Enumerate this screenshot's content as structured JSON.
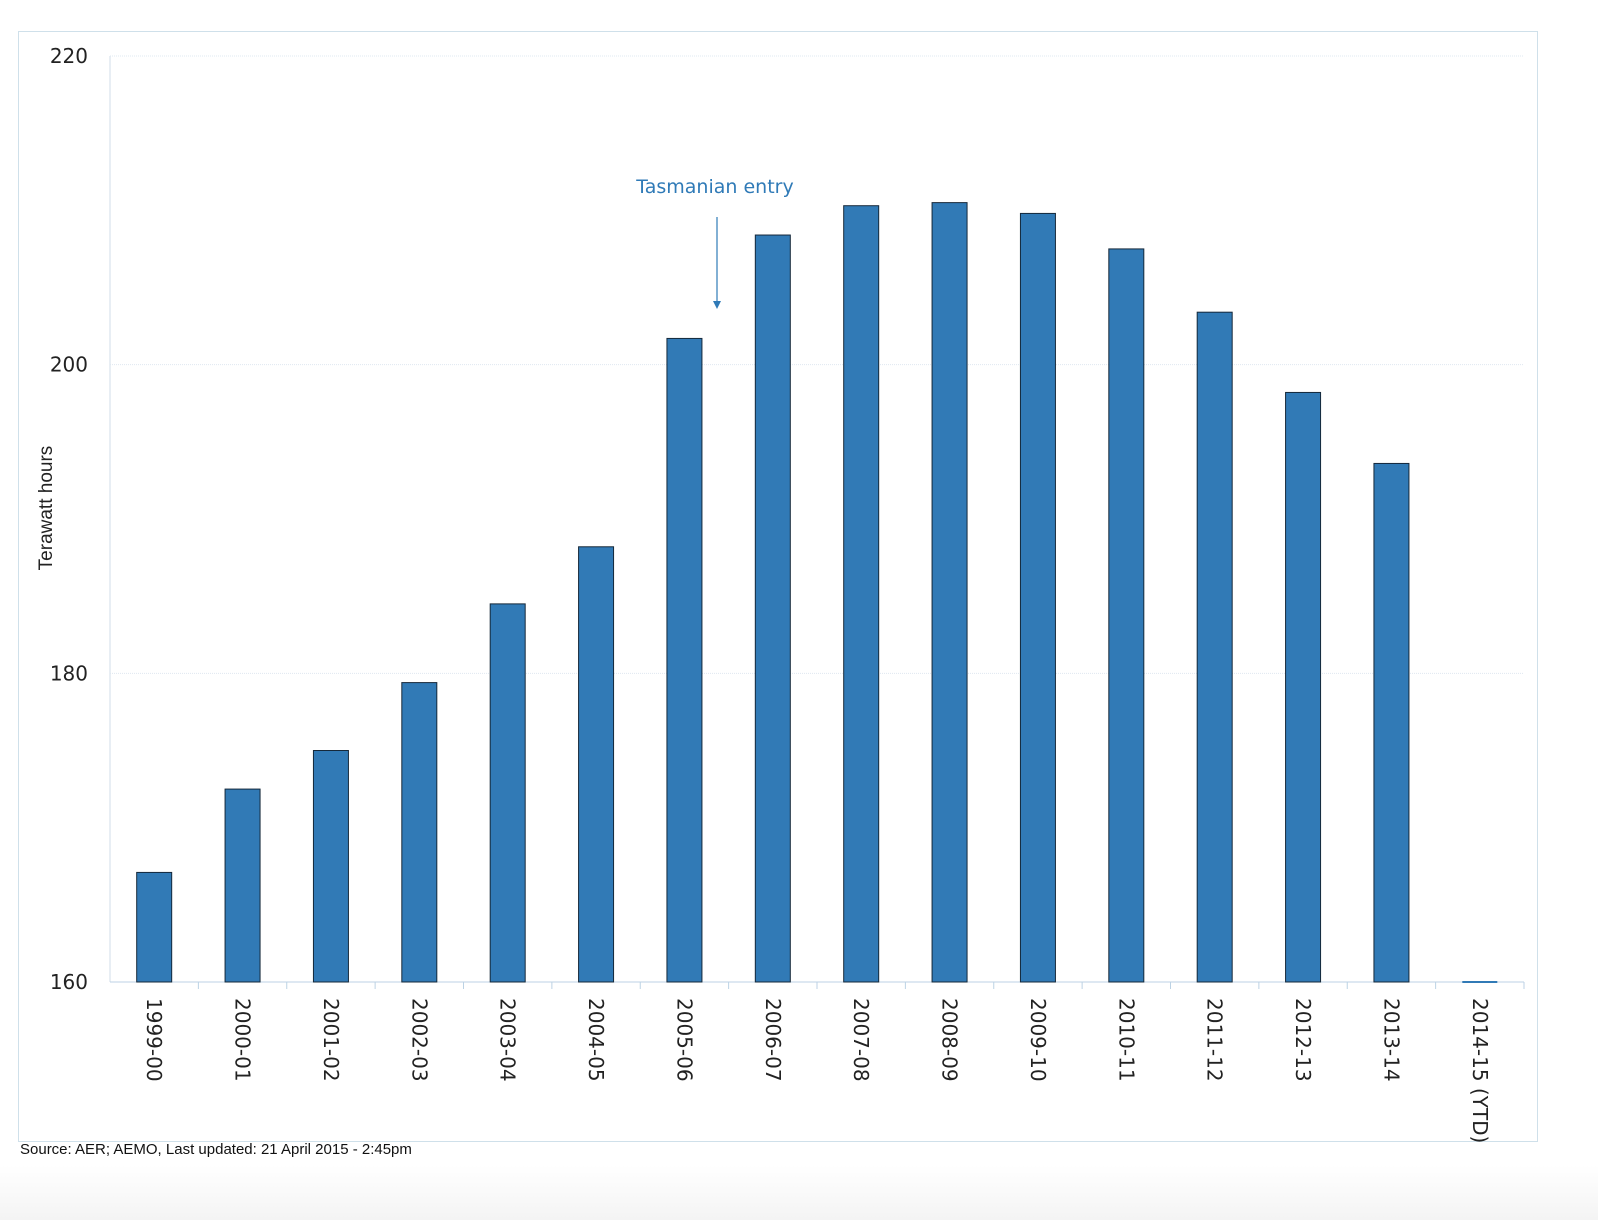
{
  "chart_data": {
    "type": "bar",
    "title": "",
    "xlabel": "",
    "ylabel": "Terawatt hours",
    "ylim": [
      160,
      220
    ],
    "yticks": [
      "160",
      "180",
      "200",
      "220"
    ],
    "categories": [
      "1999-00",
      "2000-01",
      "2001-02",
      "2002-03",
      "2003-04",
      "2004-05",
      "2005-06",
      "2006-07",
      "2007-08",
      "2008-09",
      "2009-10",
      "2010-11",
      "2011-12",
      "2012-13",
      "2013-14",
      "2014-15 (YTD)"
    ],
    "values": [
      167.1,
      172.5,
      175.0,
      179.4,
      184.5,
      188.2,
      201.7,
      208.4,
      210.3,
      210.5,
      209.8,
      207.5,
      203.4,
      198.2,
      193.6,
      160.0
    ],
    "grid": true,
    "bar_color": "#317ab6",
    "annotation": {
      "text": "Tasmanian entry",
      "color": "#2f7ab7"
    }
  },
  "footer": {
    "source": "Source: AER; AEMO, Last updated: 21 April 2015 - 2:45pm"
  }
}
